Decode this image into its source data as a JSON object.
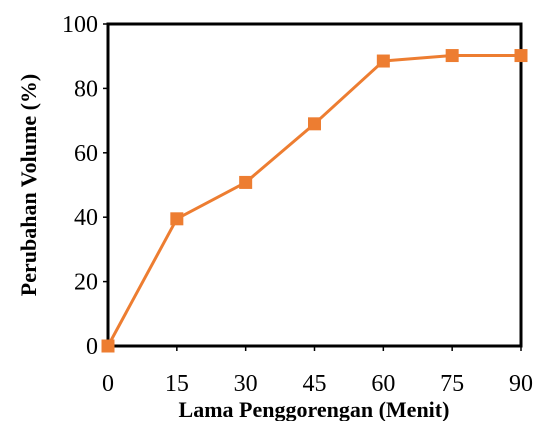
{
  "chart_data": {
    "type": "line",
    "title": "",
    "xlabel": "Lama Penggorengan (Menit)",
    "ylabel": "Perubahan Volume (%)",
    "x": [
      0,
      15,
      30,
      45,
      60,
      75,
      90
    ],
    "xlim": [
      0,
      90
    ],
    "ylim": [
      0,
      100
    ],
    "xticks": [
      "0",
      "15",
      "30",
      "45",
      "60",
      "75",
      "90"
    ],
    "yticks": [
      "0",
      "20",
      "40",
      "60",
      "80",
      "100"
    ],
    "series": [
      {
        "values": [
          0,
          39.5,
          50.8,
          69,
          88.5,
          90.2,
          90.2
        ]
      }
    ],
    "grid": false,
    "legend": "none",
    "marker": "square",
    "colors": {
      "line": "#ED7D31",
      "axes": "#000000"
    }
  }
}
